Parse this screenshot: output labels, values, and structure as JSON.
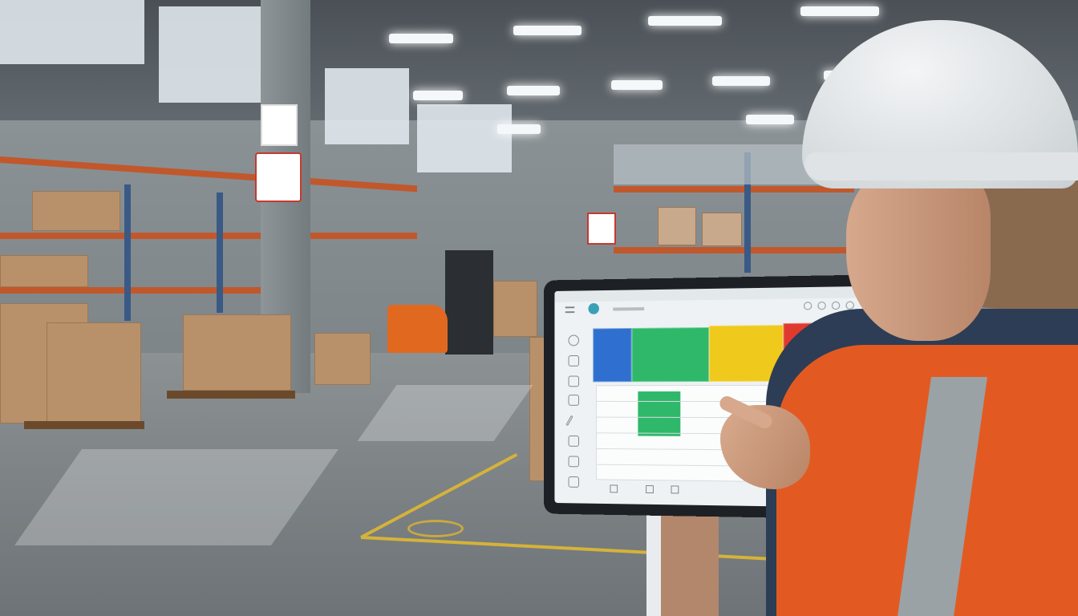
{
  "scene": {
    "setting": "warehouse",
    "colors": {
      "vest": "#e25a22",
      "helmet": "#e6e9eb",
      "shelf_beam": "#c0582c",
      "forklift": "#e0691f",
      "floor_line": "#d5b23a"
    }
  },
  "tablet_ui": {
    "status_colors": [
      "#2f6fd0",
      "#2fb86a",
      "#efc91c",
      "#e03a2e"
    ],
    "sidebar_icons": [
      "close-icon",
      "user-icon",
      "message-icon",
      "grid-icon",
      "edit-icon",
      "inbox-icon",
      "calendar-icon",
      "chart-icon"
    ],
    "header_icons": [
      "bell-icon",
      "user-icon",
      "settings-icon",
      "help-icon"
    ],
    "bottom_icons": [
      "home-icon",
      "grid-icon",
      "layout-icon"
    ]
  }
}
